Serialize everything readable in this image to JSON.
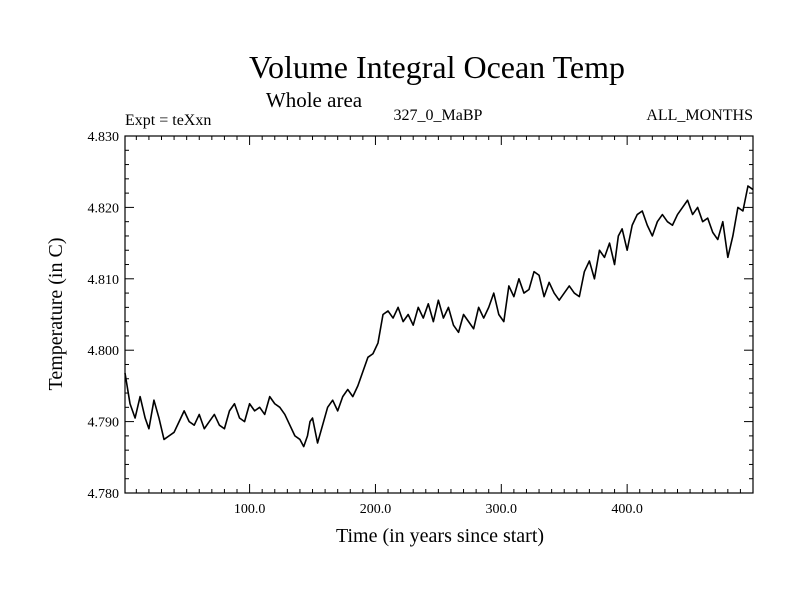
{
  "chart_data": {
    "type": "line",
    "title": "Volume Integral Ocean Temp",
    "subtitle": "Whole area",
    "experiment": "Expt = teXxn",
    "run_label": "327_0_MaBP",
    "months_label": "ALL_MONTHS",
    "xlabel": "Time (in years since start)",
    "ylabel": "Temperature (in C)",
    "xlim": [
      1,
      500
    ],
    "ylim": [
      4.78,
      4.83
    ],
    "xticks": [
      100,
      200,
      300,
      400
    ],
    "xtick_labels": [
      "100.0",
      "200.0",
      "300.0",
      "400.0"
    ],
    "yticks": [
      4.78,
      4.79,
      4.8,
      4.81,
      4.82,
      4.83
    ],
    "ytick_labels": [
      "4.780",
      "4.790",
      "4.800",
      "4.810",
      "4.820",
      "4.830"
    ],
    "grid": false,
    "series": [
      {
        "name": "Volume Integral Ocean Temp",
        "x": [
          1,
          5,
          9,
          13,
          17,
          20,
          24,
          28,
          32,
          36,
          40,
          44,
          48,
          52,
          56,
          60,
          64,
          68,
          72,
          76,
          80,
          84,
          88,
          92,
          96,
          100,
          104,
          108,
          112,
          116,
          120,
          124,
          128,
          132,
          136,
          140,
          143,
          146,
          148,
          150,
          154,
          158,
          162,
          166,
          170,
          174,
          178,
          182,
          186,
          190,
          194,
          198,
          202,
          206,
          210,
          214,
          218,
          222,
          226,
          230,
          234,
          238,
          242,
          246,
          250,
          254,
          258,
          262,
          266,
          270,
          274,
          278,
          282,
          286,
          290,
          294,
          298,
          302,
          306,
          310,
          314,
          318,
          322,
          326,
          330,
          334,
          338,
          342,
          346,
          350,
          354,
          358,
          362,
          366,
          370,
          374,
          378,
          382,
          386,
          390,
          393,
          396,
          400,
          404,
          408,
          412,
          416,
          420,
          424,
          428,
          432,
          436,
          440,
          444,
          448,
          452,
          456,
          460,
          464,
          468,
          472,
          476,
          480,
          484,
          488,
          492,
          496,
          500
        ],
        "y": [
          4.7968,
          4.7925,
          4.7905,
          4.7935,
          4.7905,
          4.789,
          4.793,
          4.7905,
          4.7875,
          4.788,
          4.7885,
          4.79,
          4.7915,
          4.79,
          4.7895,
          4.791,
          4.789,
          4.79,
          4.791,
          4.7895,
          4.789,
          4.7915,
          4.7925,
          4.7905,
          4.79,
          4.7925,
          4.7915,
          4.792,
          4.791,
          4.7935,
          4.7925,
          4.792,
          4.791,
          4.7895,
          4.788,
          4.7875,
          4.7865,
          4.788,
          4.79,
          4.7905,
          4.787,
          4.7895,
          4.792,
          4.793,
          4.7915,
          4.7935,
          4.7945,
          4.7935,
          4.795,
          4.797,
          4.799,
          4.7995,
          4.801,
          4.805,
          4.8055,
          4.8045,
          4.806,
          4.804,
          4.805,
          4.8035,
          4.806,
          4.8045,
          4.8065,
          4.804,
          4.807,
          4.8045,
          4.806,
          4.8035,
          4.8025,
          4.805,
          4.804,
          4.803,
          4.806,
          4.8045,
          4.806,
          4.808,
          4.805,
          4.804,
          4.809,
          4.8075,
          4.81,
          4.808,
          4.8085,
          4.811,
          4.8105,
          4.8075,
          4.8095,
          4.808,
          4.807,
          4.808,
          4.809,
          4.808,
          4.8075,
          4.811,
          4.8125,
          4.81,
          4.814,
          4.813,
          4.815,
          4.812,
          4.816,
          4.817,
          4.814,
          4.8175,
          4.819,
          4.8195,
          4.8175,
          4.816,
          4.818,
          4.819,
          4.818,
          4.8175,
          4.819,
          4.82,
          4.821,
          4.819,
          4.82,
          4.818,
          4.8185,
          4.8165,
          4.8155,
          4.818,
          4.813,
          4.816,
          4.82,
          4.8195,
          4.823,
          4.8225
        ]
      }
    ]
  }
}
